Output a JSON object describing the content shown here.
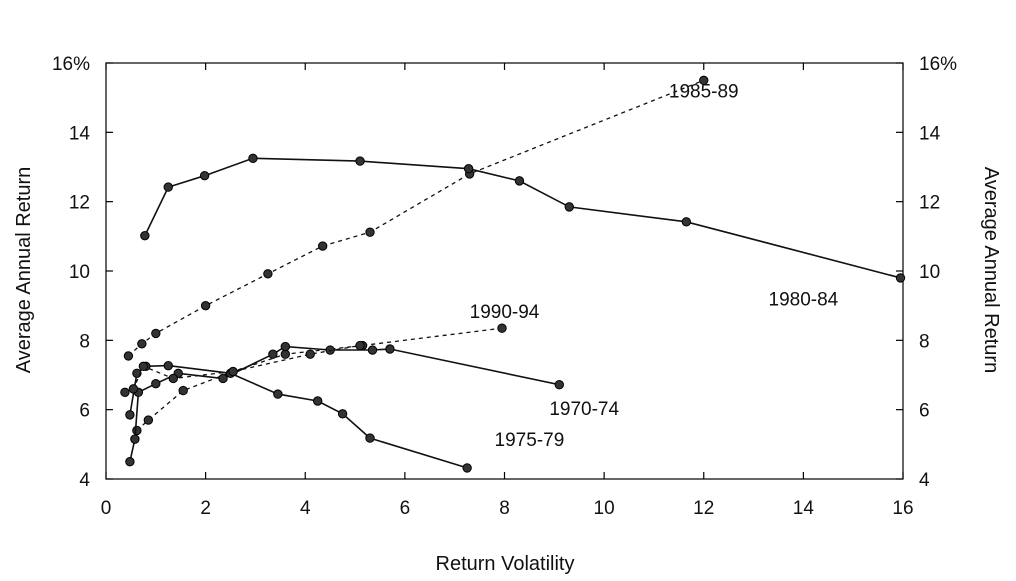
{
  "chart_data": {
    "type": "line",
    "xlabel": "Return Volatility",
    "ylabel_left": "Average Annual Return",
    "ylabel_right": "Average Annual Return",
    "xlim": [
      0,
      16
    ],
    "ylim": [
      4,
      16
    ],
    "x_ticks": [
      "0",
      "2",
      "4",
      "6",
      "8",
      "10",
      "12",
      "14",
      "16"
    ],
    "y_ticks": [
      "4",
      "6",
      "8",
      "10",
      "12",
      "14",
      "16%"
    ],
    "grid": false,
    "series": [
      {
        "name": "1985-89",
        "style": "dashed",
        "points": [
          [
            0.45,
            7.55
          ],
          [
            0.72,
            7.9
          ],
          [
            1.0,
            8.2
          ],
          [
            2.0,
            9.0
          ],
          [
            3.25,
            9.92
          ],
          [
            4.35,
            10.72
          ],
          [
            5.3,
            11.12
          ],
          [
            7.3,
            12.8
          ],
          [
            12.0,
            15.5
          ]
        ]
      },
      {
        "name": "1980-84",
        "style": "solid",
        "points": [
          [
            0.78,
            11.02
          ],
          [
            1.25,
            12.42
          ],
          [
            1.98,
            12.75
          ],
          [
            2.95,
            13.25
          ],
          [
            5.1,
            13.17
          ],
          [
            7.28,
            12.95
          ],
          [
            8.3,
            12.6
          ],
          [
            9.3,
            11.85
          ],
          [
            11.65,
            11.42
          ],
          [
            15.95,
            9.8
          ]
        ]
      },
      {
        "name": "1990-94",
        "style": "dashed",
        "points": [
          [
            0.62,
            5.4
          ],
          [
            0.85,
            5.7
          ],
          [
            1.55,
            6.55
          ],
          [
            2.55,
            7.1
          ],
          [
            3.6,
            7.6
          ],
          [
            5.15,
            7.85
          ],
          [
            7.95,
            8.35
          ]
        ]
      },
      {
        "name": "1970-74",
        "style": "solid",
        "points": [
          [
            0.48,
            4.5
          ],
          [
            0.58,
            5.15
          ],
          [
            0.65,
            6.5
          ],
          [
            1.0,
            6.75
          ],
          [
            1.45,
            7.05
          ],
          [
            2.35,
            6.9
          ],
          [
            3.35,
            7.6
          ],
          [
            3.6,
            7.82
          ],
          [
            4.5,
            7.72
          ],
          [
            5.35,
            7.72
          ],
          [
            5.7,
            7.75
          ],
          [
            9.1,
            6.72
          ]
        ]
      },
      {
        "name": "1975-79",
        "style": "solid",
        "points": [
          [
            0.48,
            5.85
          ],
          [
            0.62,
            7.05
          ],
          [
            0.8,
            7.25
          ],
          [
            1.25,
            7.27
          ],
          [
            2.5,
            7.05
          ],
          [
            3.45,
            6.45
          ],
          [
            4.25,
            6.25
          ],
          [
            4.75,
            5.88
          ],
          [
            5.3,
            5.18
          ],
          [
            7.25,
            4.32
          ]
        ]
      },
      {
        "name": "",
        "style": "dashed",
        "points": [
          [
            0.38,
            6.5
          ],
          [
            0.55,
            6.6
          ],
          [
            0.75,
            7.25
          ],
          [
            1.35,
            6.9
          ],
          [
            2.55,
            7.1
          ],
          [
            4.1,
            7.6
          ],
          [
            5.1,
            7.85
          ]
        ]
      }
    ],
    "labels": [
      {
        "text": "1985-89",
        "x": 12.0,
        "y": 15.0
      },
      {
        "text": "1980-84",
        "x": 14.0,
        "y": 9.0
      },
      {
        "text": "1990-94",
        "x": 8.0,
        "y": 8.65
      },
      {
        "text": "1970-74",
        "x": 9.6,
        "y": 5.85
      },
      {
        "text": "1975-79",
        "x": 8.5,
        "y": 4.95
      }
    ]
  }
}
